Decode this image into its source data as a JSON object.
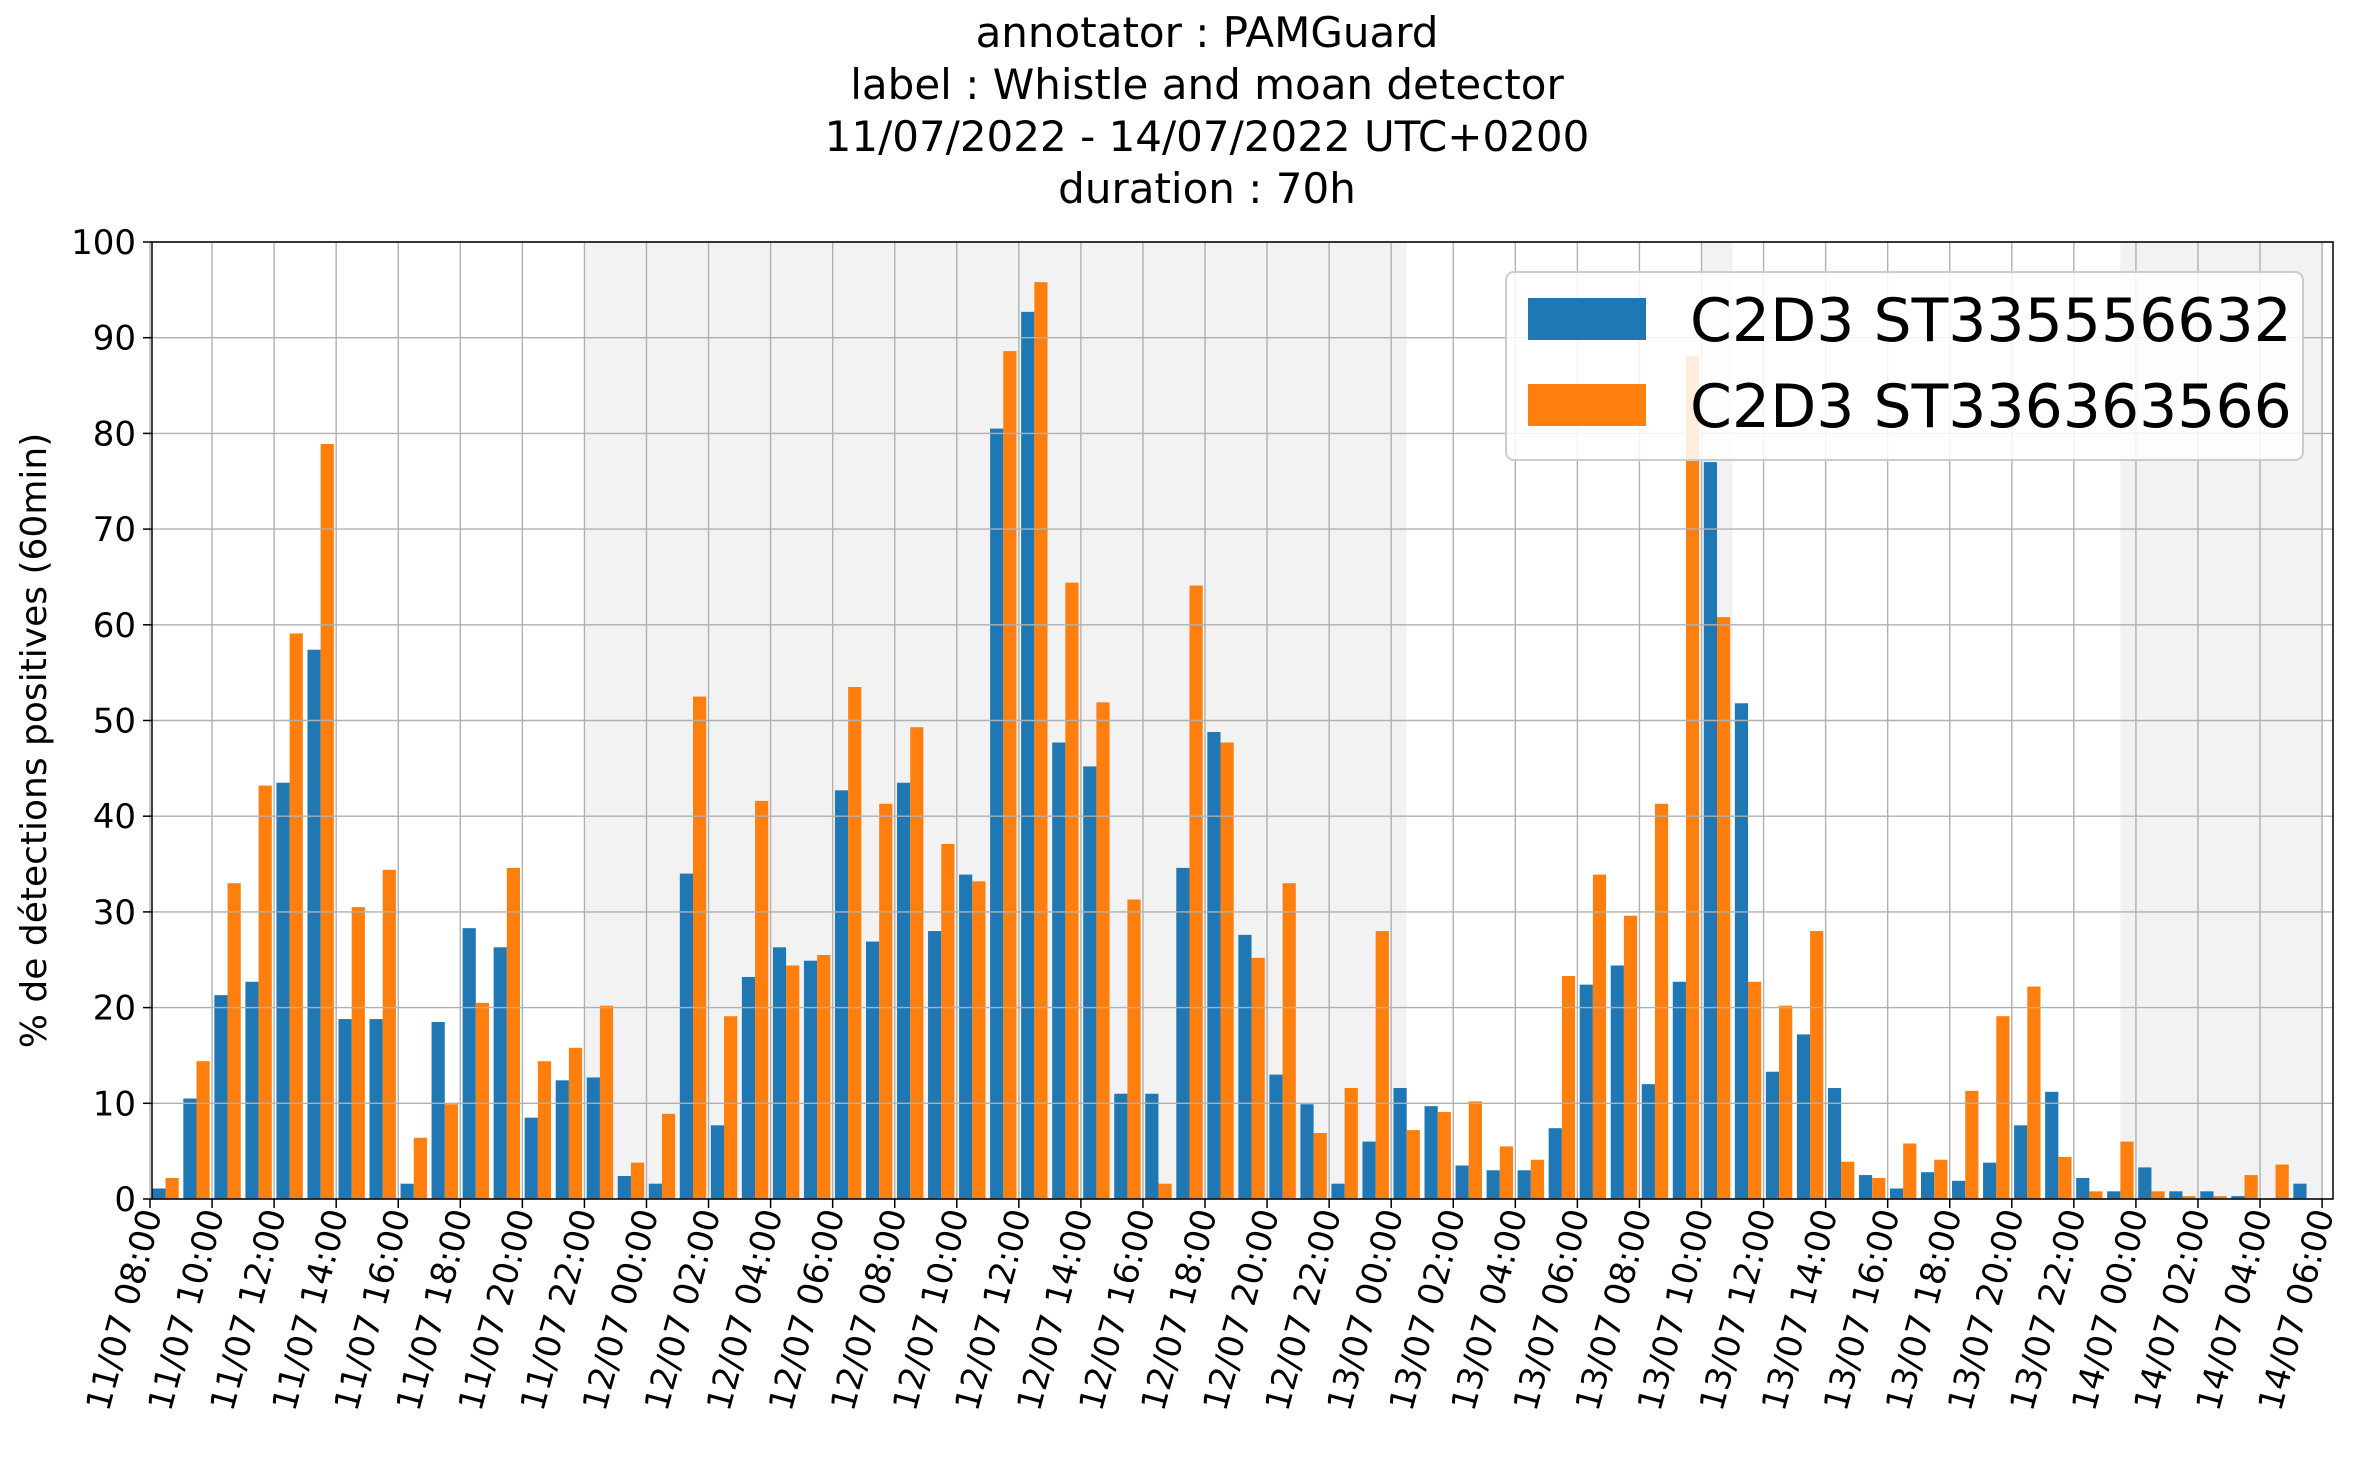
{
  "chart_data": {
    "type": "bar",
    "title_lines": [
      "annotator : PAMGuard",
      "label : Whistle and moan detector",
      "11/07/2022 - 14/07/2022 UTC+0200",
      "duration : 70h"
    ],
    "ylabel": "% de détections positives (60min)",
    "xlabel": "",
    "ylim": [
      0,
      100
    ],
    "yticks": [
      0,
      10,
      20,
      30,
      40,
      50,
      60,
      70,
      80,
      90,
      100
    ],
    "grid": true,
    "legend_position": "top-right",
    "x_start": "11/07 08:00",
    "x_end": "14/07 06:00",
    "x_tick_step_hours": 2,
    "xtick_labels": [
      "11/07 08:00",
      "11/07 10:00",
      "11/07 12:00",
      "11/07 14:00",
      "11/07 16:00",
      "11/07 18:00",
      "11/07 20:00",
      "11/07 22:00",
      "12/07 00:00",
      "12/07 02:00",
      "12/07 04:00",
      "12/07 06:00",
      "12/07 08:00",
      "12/07 10:00",
      "12/07 12:00",
      "12/07 14:00",
      "12/07 16:00",
      "12/07 18:00",
      "12/07 20:00",
      "12/07 22:00",
      "13/07 00:00",
      "13/07 02:00",
      "13/07 04:00",
      "13/07 06:00",
      "13/07 08:00",
      "13/07 10:00",
      "13/07 12:00",
      "13/07 14:00",
      "13/07 16:00",
      "13/07 18:00",
      "13/07 20:00",
      "13/07 22:00",
      "14/07 00:00",
      "14/07 02:00",
      "14/07 04:00",
      "14/07 06:00"
    ],
    "night_shading": [
      {
        "start": "11/07 22:00",
        "end": "13/07 00:30"
      },
      {
        "start": "13/07 10:00",
        "end": "13/07 11:00"
      },
      {
        "start": "13/07 23:30",
        "end": "14/07 06:00"
      }
    ],
    "series": [
      {
        "name": "C2D3 ST335556632",
        "color": "#1f77b4",
        "values": [
          1.1,
          10.5,
          21.3,
          22.7,
          43.5,
          57.4,
          18.8,
          18.8,
          1.6,
          18.5,
          28.3,
          26.3,
          8.5,
          12.4,
          12.7,
          2.4,
          1.6,
          34.0,
          7.7,
          23.2,
          26.3,
          24.9,
          42.7,
          26.9,
          43.5,
          28.0,
          33.9,
          80.5,
          92.7,
          47.7,
          45.2,
          11.0,
          11.0,
          34.6,
          48.8,
          27.6,
          13.0,
          9.9,
          1.6,
          6.0,
          11.6,
          9.7,
          3.5,
          3.0,
          3.0,
          7.4,
          22.4,
          24.4,
          12.0,
          22.7,
          77.0,
          51.8,
          13.3,
          17.2,
          11.6,
          2.5,
          1.1,
          2.8,
          1.9,
          3.8,
          7.7,
          11.2,
          2.2,
          0.8,
          3.3,
          0.8,
          0.8,
          0.3,
          0.0,
          1.6
        ]
      },
      {
        "name": "C2D3 ST336363566",
        "color": "#ff7f0e",
        "values": [
          2.2,
          14.4,
          33.0,
          43.2,
          59.1,
          78.9,
          30.5,
          34.4,
          6.4,
          9.9,
          20.5,
          34.6,
          14.4,
          15.8,
          20.2,
          3.8,
          8.9,
          52.5,
          19.1,
          41.6,
          24.4,
          25.5,
          53.5,
          41.3,
          49.3,
          37.1,
          33.2,
          88.6,
          95.8,
          64.4,
          51.9,
          31.3,
          1.6,
          64.1,
          47.7,
          25.2,
          33.0,
          6.9,
          11.6,
          28.0,
          7.2,
          9.1,
          10.2,
          5.5,
          4.1,
          23.3,
          33.9,
          29.6,
          41.3,
          88.1,
          60.8,
          22.7,
          20.2,
          28.0,
          3.9,
          2.2,
          5.8,
          4.1,
          11.3,
          19.1,
          22.2,
          4.4,
          0.8,
          6.0,
          0.8,
          0.3,
          0.3,
          2.5,
          3.6,
          0.0
        ]
      }
    ]
  }
}
